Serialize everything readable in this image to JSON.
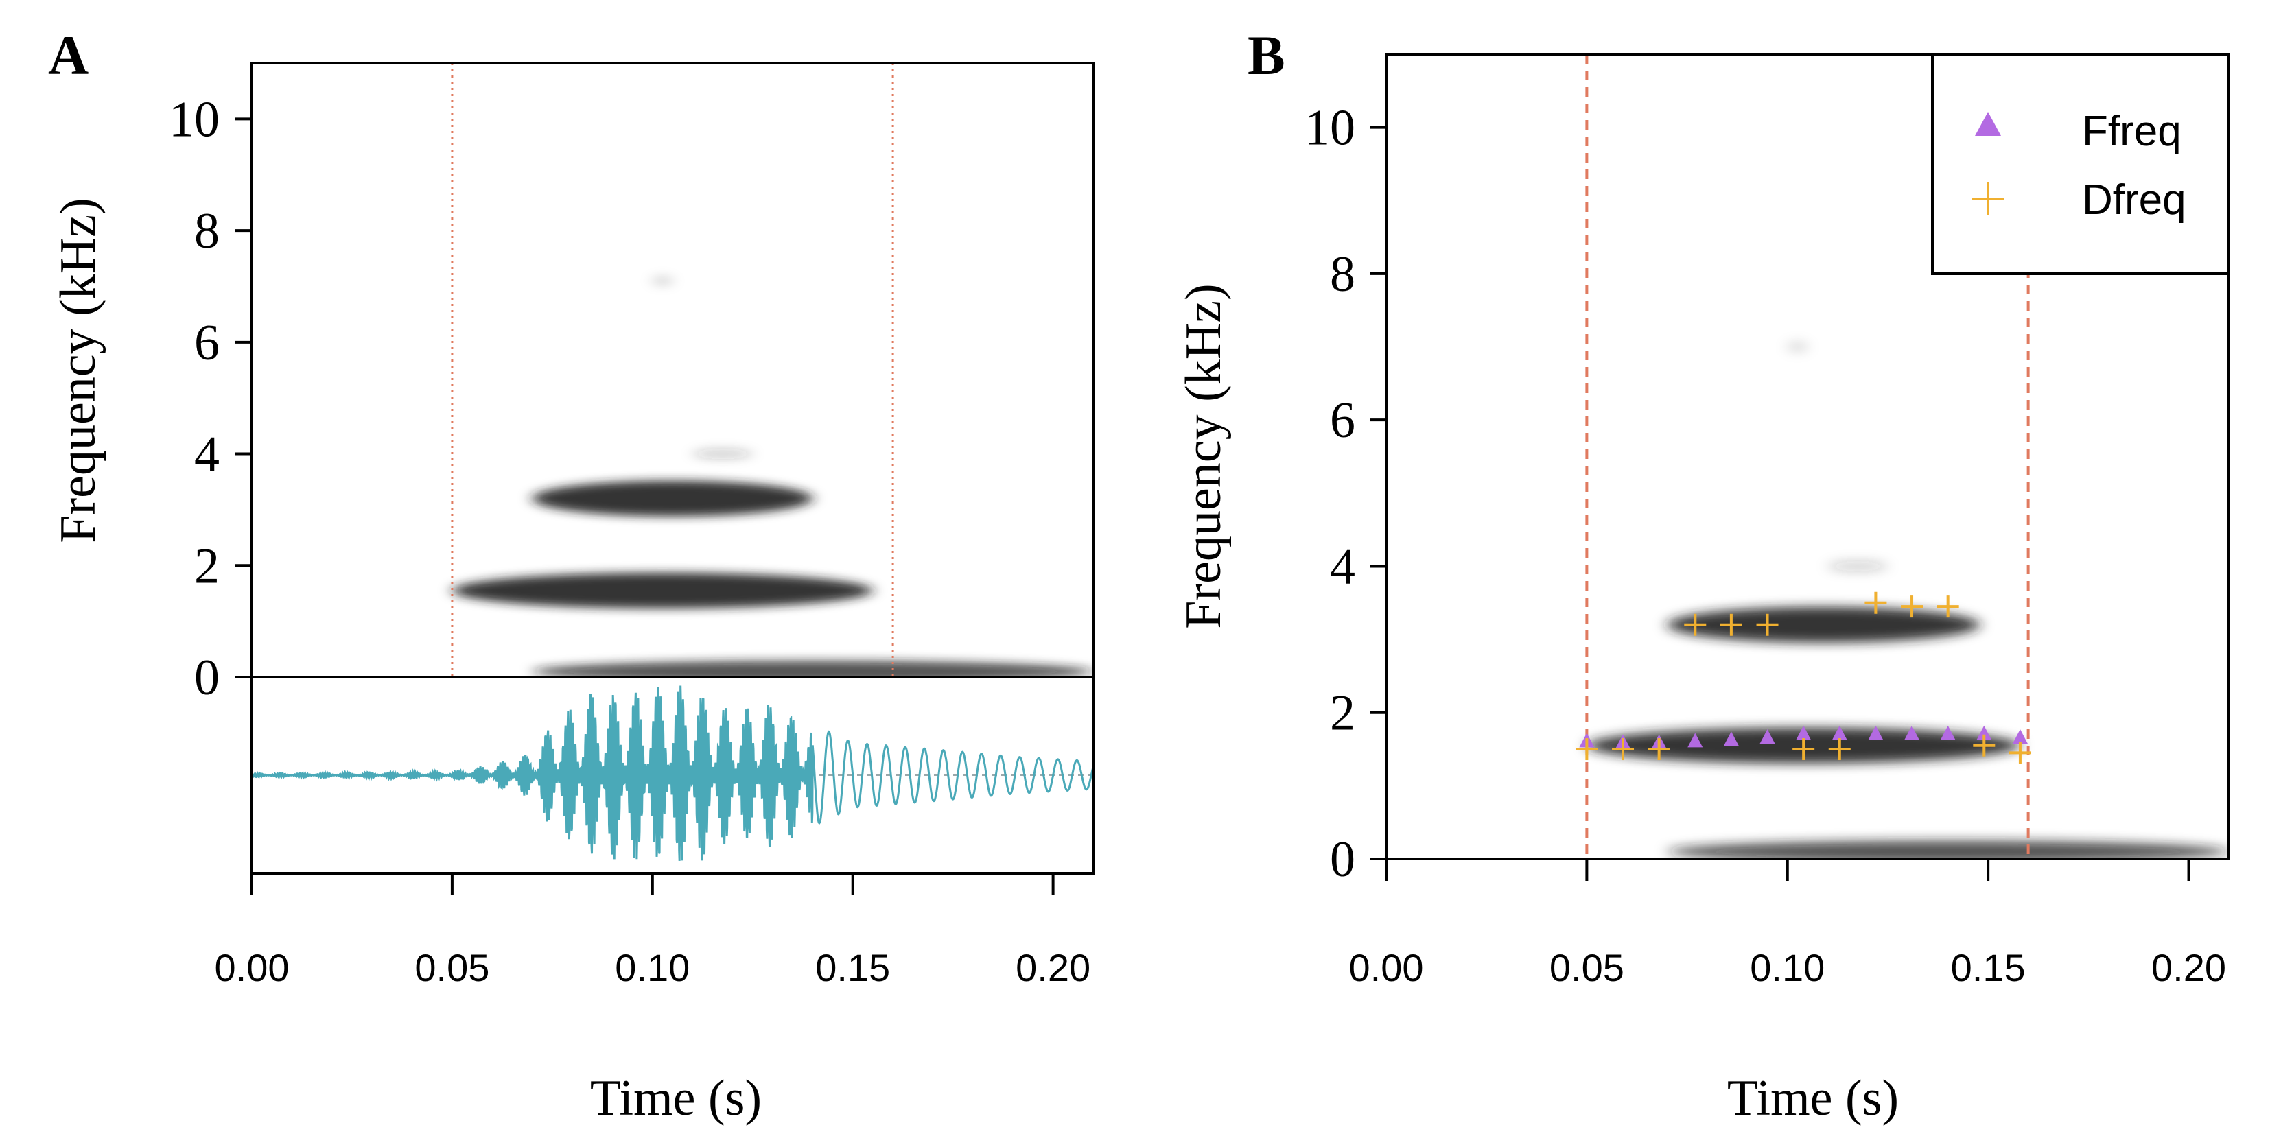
{
  "figure": {
    "colors": {
      "axis": "#000000",
      "spectrogram": "#1e1e1e",
      "waveform": "#4aa9b8",
      "marker_line": "#e07a5f",
      "ffreq": "#b36ae2",
      "dfreq": "#f0b030",
      "background": "#ffffff"
    }
  },
  "chart_data": [
    {
      "panel_label": "A",
      "type": "spectrogram",
      "title": "",
      "xlabel": "Time (s)",
      "ylabel": "Frequency (kHz)",
      "xlim": [
        0,
        0.21
      ],
      "ylim": [
        0,
        11
      ],
      "x_ticks": [
        0.0,
        0.05,
        0.1,
        0.15,
        0.2
      ],
      "x_tick_labels": [
        "0.00",
        "0.05",
        "0.10",
        "0.15",
        "0.20"
      ],
      "y_ticks": [
        0,
        2,
        4,
        6,
        8,
        10
      ],
      "y_tick_labels": [
        "0",
        "2",
        "4",
        "6",
        "8",
        "10"
      ],
      "selection_lines": [
        0.05,
        0.16
      ],
      "harmonic_bands": [
        {
          "t_start": 0.07,
          "t_end": 0.14,
          "f_center": 3.2,
          "intensity": 0.9
        },
        {
          "t_start": 0.05,
          "t_end": 0.155,
          "f_center": 1.55,
          "intensity": 0.9
        },
        {
          "t_start": 0.07,
          "t_end": 0.21,
          "f_center": 0.1,
          "intensity": 0.75
        },
        {
          "t_start": 0.11,
          "t_end": 0.125,
          "f_center": 4.0,
          "intensity": 0.2
        },
        {
          "t_start": 0.1,
          "t_end": 0.105,
          "f_center": 7.1,
          "intensity": 0.15
        }
      ],
      "oscillogram": {
        "present": true,
        "envelope": [
          {
            "t": 0.0,
            "amp": 0.02
          },
          {
            "t": 0.05,
            "amp": 0.04
          },
          {
            "t": 0.06,
            "amp": 0.12
          },
          {
            "t": 0.07,
            "amp": 0.25
          },
          {
            "t": 0.075,
            "amp": 0.6
          },
          {
            "t": 0.085,
            "amp": 0.9
          },
          {
            "t": 0.1,
            "amp": 0.95
          },
          {
            "t": 0.11,
            "amp": 1.0
          },
          {
            "t": 0.12,
            "amp": 0.7
          },
          {
            "t": 0.13,
            "amp": 0.8
          },
          {
            "t": 0.14,
            "amp": 0.55
          },
          {
            "t": 0.15,
            "amp": 0.35
          },
          {
            "t": 0.17,
            "amp": 0.28
          },
          {
            "t": 0.19,
            "amp": 0.2
          },
          {
            "t": 0.21,
            "amp": 0.15
          }
        ]
      }
    },
    {
      "panel_label": "B",
      "type": "spectrogram",
      "title": "",
      "xlabel": "Time (s)",
      "ylabel": "Frequency (kHz)",
      "xlim": [
        0,
        0.21
      ],
      "ylim": [
        0,
        11
      ],
      "x_ticks": [
        0.0,
        0.05,
        0.1,
        0.15,
        0.2
      ],
      "x_tick_labels": [
        "0.00",
        "0.05",
        "0.10",
        "0.15",
        "0.20"
      ],
      "y_ticks": [
        0,
        2,
        4,
        6,
        8,
        10
      ],
      "y_tick_labels": [
        "0",
        "2",
        "4",
        "6",
        "8",
        "10"
      ],
      "selection_lines": [
        0.05,
        0.16
      ],
      "legend": {
        "position": "top-right",
        "entries": [
          {
            "label": "Ffreq",
            "marker": "triangle"
          },
          {
            "label": "Dfreq",
            "marker": "plus"
          }
        ]
      },
      "harmonic_bands": [
        {
          "t_start": 0.07,
          "t_end": 0.148,
          "f_center": 3.2,
          "intensity": 0.9
        },
        {
          "t_start": 0.05,
          "t_end": 0.158,
          "f_center": 1.55,
          "intensity": 0.9
        },
        {
          "t_start": 0.07,
          "t_end": 0.21,
          "f_center": 0.1,
          "intensity": 0.75
        },
        {
          "t_start": 0.11,
          "t_end": 0.125,
          "f_center": 4.0,
          "intensity": 0.2
        },
        {
          "t_start": 0.1,
          "t_end": 0.105,
          "f_center": 7.0,
          "intensity": 0.15
        }
      ],
      "series": [
        {
          "name": "Ffreq",
          "marker": "triangle",
          "points": [
            {
              "t": 0.05,
              "f": 1.6
            },
            {
              "t": 0.059,
              "f": 1.58
            },
            {
              "t": 0.068,
              "f": 1.58
            },
            {
              "t": 0.077,
              "f": 1.6
            },
            {
              "t": 0.086,
              "f": 1.62
            },
            {
              "t": 0.095,
              "f": 1.65
            },
            {
              "t": 0.104,
              "f": 1.7
            },
            {
              "t": 0.113,
              "f": 1.7
            },
            {
              "t": 0.122,
              "f": 1.7
            },
            {
              "t": 0.131,
              "f": 1.7
            },
            {
              "t": 0.14,
              "f": 1.7
            },
            {
              "t": 0.149,
              "f": 1.7
            },
            {
              "t": 0.158,
              "f": 1.65
            }
          ]
        },
        {
          "name": "Dfreq",
          "marker": "plus",
          "points": [
            {
              "t": 0.05,
              "f": 1.5
            },
            {
              "t": 0.059,
              "f": 1.5
            },
            {
              "t": 0.068,
              "f": 1.5
            },
            {
              "t": 0.077,
              "f": 3.2
            },
            {
              "t": 0.086,
              "f": 3.2
            },
            {
              "t": 0.095,
              "f": 3.2
            },
            {
              "t": 0.104,
              "f": 1.5
            },
            {
              "t": 0.113,
              "f": 1.5
            },
            {
              "t": 0.122,
              "f": 3.5
            },
            {
              "t": 0.131,
              "f": 3.45
            },
            {
              "t": 0.14,
              "f": 3.45
            },
            {
              "t": 0.149,
              "f": 1.55
            },
            {
              "t": 0.158,
              "f": 1.45
            }
          ]
        }
      ]
    }
  ]
}
